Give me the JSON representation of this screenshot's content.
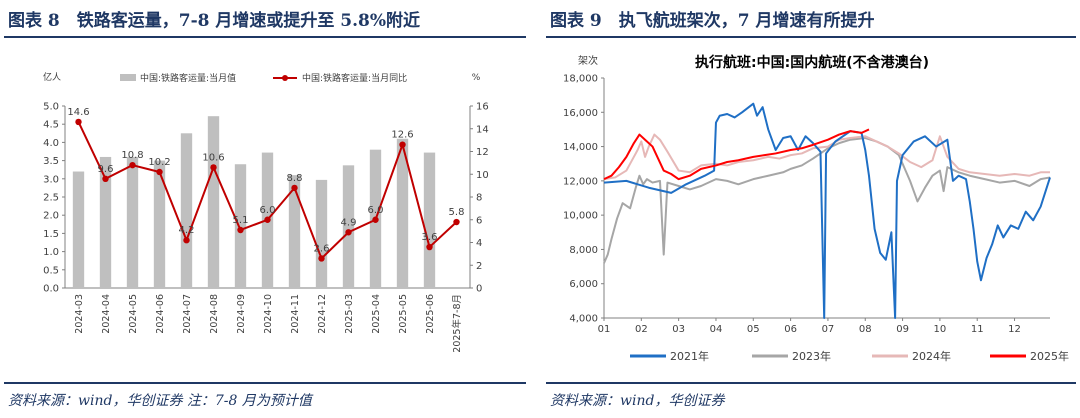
{
  "left": {
    "title": "图表 8　铁路客运量，7-8 月增速或提升至 5.8%附近",
    "source": "资料来源：wind，华创证券  注：7-8 月为预计值"
  },
  "right": {
    "title": "图表 9　执飞航班架次，7 月增速有所提升",
    "source": "资料来源：wind，华创证券"
  },
  "chart_data": [
    {
      "type": "bar",
      "title": "",
      "y_left_unit": "亿人",
      "y_right_unit": "%",
      "categories": [
        "2024-03",
        "2024-04",
        "2024-05",
        "2024-06",
        "2024-07",
        "2024-08",
        "2024-09",
        "2024-10",
        "2024-11",
        "2024-12",
        "2025-03",
        "2025-04",
        "2025-05",
        "2025-06",
        "2025年7-8月"
      ],
      "ylim_left": [
        0,
        5.0
      ],
      "yticks_left": [
        "0.0",
        "0.5",
        "1.0",
        "1.5",
        "2.0",
        "2.5",
        "3.0",
        "3.5",
        "4.0",
        "4.5",
        "5.0"
      ],
      "ylim_right": [
        0,
        16
      ],
      "yticks_right": [
        "0",
        "2",
        "4",
        "6",
        "8",
        "10",
        "12",
        "14",
        "16"
      ],
      "legend": [
        "中国:铁路客运量:当月值",
        "中国:铁路客运量:当月同比"
      ],
      "colors": {
        "bar": "#bfbfbf",
        "line": "#c00000"
      },
      "series": [
        {
          "name": "中国:铁路客运量:当月值",
          "axis": "left",
          "kind": "bar",
          "values": [
            3.2,
            3.6,
            3.6,
            3.5,
            4.25,
            4.72,
            3.4,
            3.72,
            3.1,
            2.97,
            3.37,
            3.8,
            4.1,
            3.72,
            null
          ]
        },
        {
          "name": "中国:铁路客运量:当月同比",
          "axis": "right",
          "kind": "line",
          "values": [
            14.6,
            9.6,
            10.8,
            10.2,
            4.2,
            10.6,
            5.1,
            6.0,
            8.8,
            2.6,
            4.9,
            6.0,
            12.6,
            3.6,
            5.8
          ],
          "labels": [
            "14.6",
            "9.6",
            "10.8",
            "10.2",
            "4.2",
            "10.6",
            "5.1",
            "6.0",
            "8.8",
            "2.6",
            "4.9",
            "6.0",
            "12.6",
            "3.6",
            "5.8"
          ]
        }
      ]
    },
    {
      "type": "line",
      "title": "执行航班:中国:国内航班(不含港澳台)",
      "y_unit": "架次",
      "xticks": [
        "01",
        "02",
        "03",
        "04",
        "05",
        "06",
        "07",
        "08",
        "09",
        "10",
        "11",
        "12"
      ],
      "yticks": [
        "4,000",
        "6,000",
        "8,000",
        "10,000",
        "12,000",
        "14,000",
        "16,000",
        "18,000"
      ],
      "ylim": [
        4000,
        18000
      ],
      "xlim": [
        1,
        12.95
      ],
      "grid": false,
      "legend_position": "bottom",
      "series": [
        {
          "name": "2021年",
          "color": "#1f6fc5",
          "points": [
            [
              1.0,
              11900
            ],
            [
              1.6,
              12000
            ],
            [
              2.2,
              11600
            ],
            [
              2.8,
              11300
            ],
            [
              3.2,
              11800
            ],
            [
              3.7,
              12300
            ],
            [
              3.95,
              12600
            ],
            [
              4.0,
              15400
            ],
            [
              4.1,
              15800
            ],
            [
              4.3,
              15900
            ],
            [
              4.5,
              15700
            ],
            [
              4.7,
              16000
            ],
            [
              5.0,
              16500
            ],
            [
              5.1,
              15800
            ],
            [
              5.25,
              16300
            ],
            [
              5.4,
              15000
            ],
            [
              5.6,
              13800
            ],
            [
              5.8,
              14500
            ],
            [
              6.0,
              14600
            ],
            [
              6.2,
              13800
            ],
            [
              6.4,
              14600
            ],
            [
              6.6,
              14200
            ],
            [
              6.8,
              13700
            ],
            [
              6.9,
              4000
            ],
            [
              6.95,
              13600
            ],
            [
              7.2,
              14300
            ],
            [
              7.6,
              14900
            ],
            [
              7.9,
              14800
            ],
            [
              8.0,
              13800
            ],
            [
              8.1,
              12300
            ],
            [
              8.25,
              9200
            ],
            [
              8.4,
              7800
            ],
            [
              8.55,
              7400
            ],
            [
              8.7,
              9000
            ],
            [
              8.8,
              4000
            ],
            [
              8.85,
              12000
            ],
            [
              9.0,
              13500
            ],
            [
              9.3,
              14300
            ],
            [
              9.6,
              14600
            ],
            [
              9.9,
              14000
            ],
            [
              10.2,
              14400
            ],
            [
              10.35,
              12000
            ],
            [
              10.5,
              12300
            ],
            [
              10.7,
              12100
            ],
            [
              10.8,
              10800
            ],
            [
              10.9,
              9200
            ],
            [
              11.0,
              7300
            ],
            [
              11.1,
              6200
            ],
            [
              11.25,
              7500
            ],
            [
              11.4,
              8300
            ],
            [
              11.55,
              9400
            ],
            [
              11.7,
              8700
            ],
            [
              11.9,
              9400
            ],
            [
              12.1,
              9200
            ],
            [
              12.3,
              10200
            ],
            [
              12.5,
              9700
            ],
            [
              12.7,
              10500
            ],
            [
              12.95,
              12200
            ]
          ]
        },
        {
          "name": "2023年",
          "color": "#a6a6a6",
          "points": [
            [
              1.0,
              7200
            ],
            [
              1.1,
              7700
            ],
            [
              1.2,
              8600
            ],
            [
              1.35,
              9800
            ],
            [
              1.5,
              10700
            ],
            [
              1.7,
              10400
            ],
            [
              1.85,
              11600
            ],
            [
              1.95,
              12300
            ],
            [
              2.05,
              11800
            ],
            [
              2.15,
              12100
            ],
            [
              2.3,
              11900
            ],
            [
              2.5,
              12000
            ],
            [
              2.6,
              7700
            ],
            [
              2.7,
              11900
            ],
            [
              3.0,
              11700
            ],
            [
              3.3,
              11500
            ],
            [
              3.6,
              11700
            ],
            [
              4.0,
              12100
            ],
            [
              4.3,
              12000
            ],
            [
              4.6,
              11800
            ],
            [
              5.0,
              12100
            ],
            [
              5.4,
              12300
            ],
            [
              5.8,
              12500
            ],
            [
              6.0,
              12700
            ],
            [
              6.3,
              12900
            ],
            [
              6.6,
              13300
            ],
            [
              7.0,
              13900
            ],
            [
              7.3,
              14200
            ],
            [
              7.6,
              14400
            ],
            [
              8.0,
              14500
            ],
            [
              8.3,
              14300
            ],
            [
              8.6,
              14000
            ],
            [
              8.9,
              13500
            ],
            [
              9.2,
              12000
            ],
            [
              9.4,
              10800
            ],
            [
              9.6,
              11600
            ],
            [
              9.8,
              12300
            ],
            [
              10.0,
              12600
            ],
            [
              10.1,
              11400
            ],
            [
              10.2,
              12800
            ],
            [
              10.5,
              12500
            ],
            [
              10.8,
              12300
            ],
            [
              11.2,
              12100
            ],
            [
              11.6,
              11900
            ],
            [
              12.0,
              12000
            ],
            [
              12.4,
              11700
            ],
            [
              12.7,
              12100
            ],
            [
              12.95,
              12200
            ]
          ]
        },
        {
          "name": "2024年",
          "color": "#e6b8b7",
          "points": [
            [
              1.0,
              12100
            ],
            [
              1.3,
              12200
            ],
            [
              1.6,
              12600
            ],
            [
              1.9,
              13800
            ],
            [
              2.0,
              14300
            ],
            [
              2.1,
              13400
            ],
            [
              2.2,
              14000
            ],
            [
              2.35,
              14700
            ],
            [
              2.5,
              14400
            ],
            [
              2.7,
              13700
            ],
            [
              3.0,
              12600
            ],
            [
              3.3,
              12500
            ],
            [
              3.6,
              12900
            ],
            [
              4.0,
              13000
            ],
            [
              4.3,
              12900
            ],
            [
              4.6,
              13100
            ],
            [
              5.0,
              13200
            ],
            [
              5.4,
              13400
            ],
            [
              5.7,
              13300
            ],
            [
              6.0,
              13500
            ],
            [
              6.3,
              13600
            ],
            [
              6.6,
              13900
            ],
            [
              7.0,
              14000
            ],
            [
              7.3,
              14400
            ],
            [
              7.6,
              14500
            ],
            [
              8.0,
              14600
            ],
            [
              8.3,
              14300
            ],
            [
              8.6,
              14000
            ],
            [
              8.9,
              13600
            ],
            [
              9.2,
              13100
            ],
            [
              9.5,
              12800
            ],
            [
              9.8,
              13200
            ],
            [
              10.0,
              14600
            ],
            [
              10.2,
              13400
            ],
            [
              10.5,
              12700
            ],
            [
              10.8,
              12500
            ],
            [
              11.2,
              12400
            ],
            [
              11.6,
              12300
            ],
            [
              12.0,
              12400
            ],
            [
              12.4,
              12300
            ],
            [
              12.7,
              12500
            ],
            [
              12.95,
              12500
            ]
          ]
        },
        {
          "name": "2025年",
          "color": "#ff0000",
          "points": [
            [
              1.0,
              12100
            ],
            [
              1.2,
              12300
            ],
            [
              1.4,
              12800
            ],
            [
              1.6,
              13400
            ],
            [
              1.8,
              14200
            ],
            [
              1.95,
              14700
            ],
            [
              2.1,
              14400
            ],
            [
              2.3,
              14000
            ],
            [
              2.45,
              13300
            ],
            [
              2.6,
              12600
            ],
            [
              2.8,
              12400
            ],
            [
              3.0,
              12100
            ],
            [
              3.3,
              12300
            ],
            [
              3.6,
              12700
            ],
            [
              4.0,
              12900
            ],
            [
              4.3,
              13100
            ],
            [
              4.6,
              13200
            ],
            [
              5.0,
              13400
            ],
            [
              5.3,
              13500
            ],
            [
              5.6,
              13600
            ],
            [
              6.0,
              13800
            ],
            [
              6.3,
              13900
            ],
            [
              6.6,
              14100
            ],
            [
              7.0,
              14400
            ],
            [
              7.3,
              14700
            ],
            [
              7.6,
              14900
            ],
            [
              7.9,
              14800
            ],
            [
              8.1,
              15000
            ]
          ]
        }
      ]
    }
  ]
}
